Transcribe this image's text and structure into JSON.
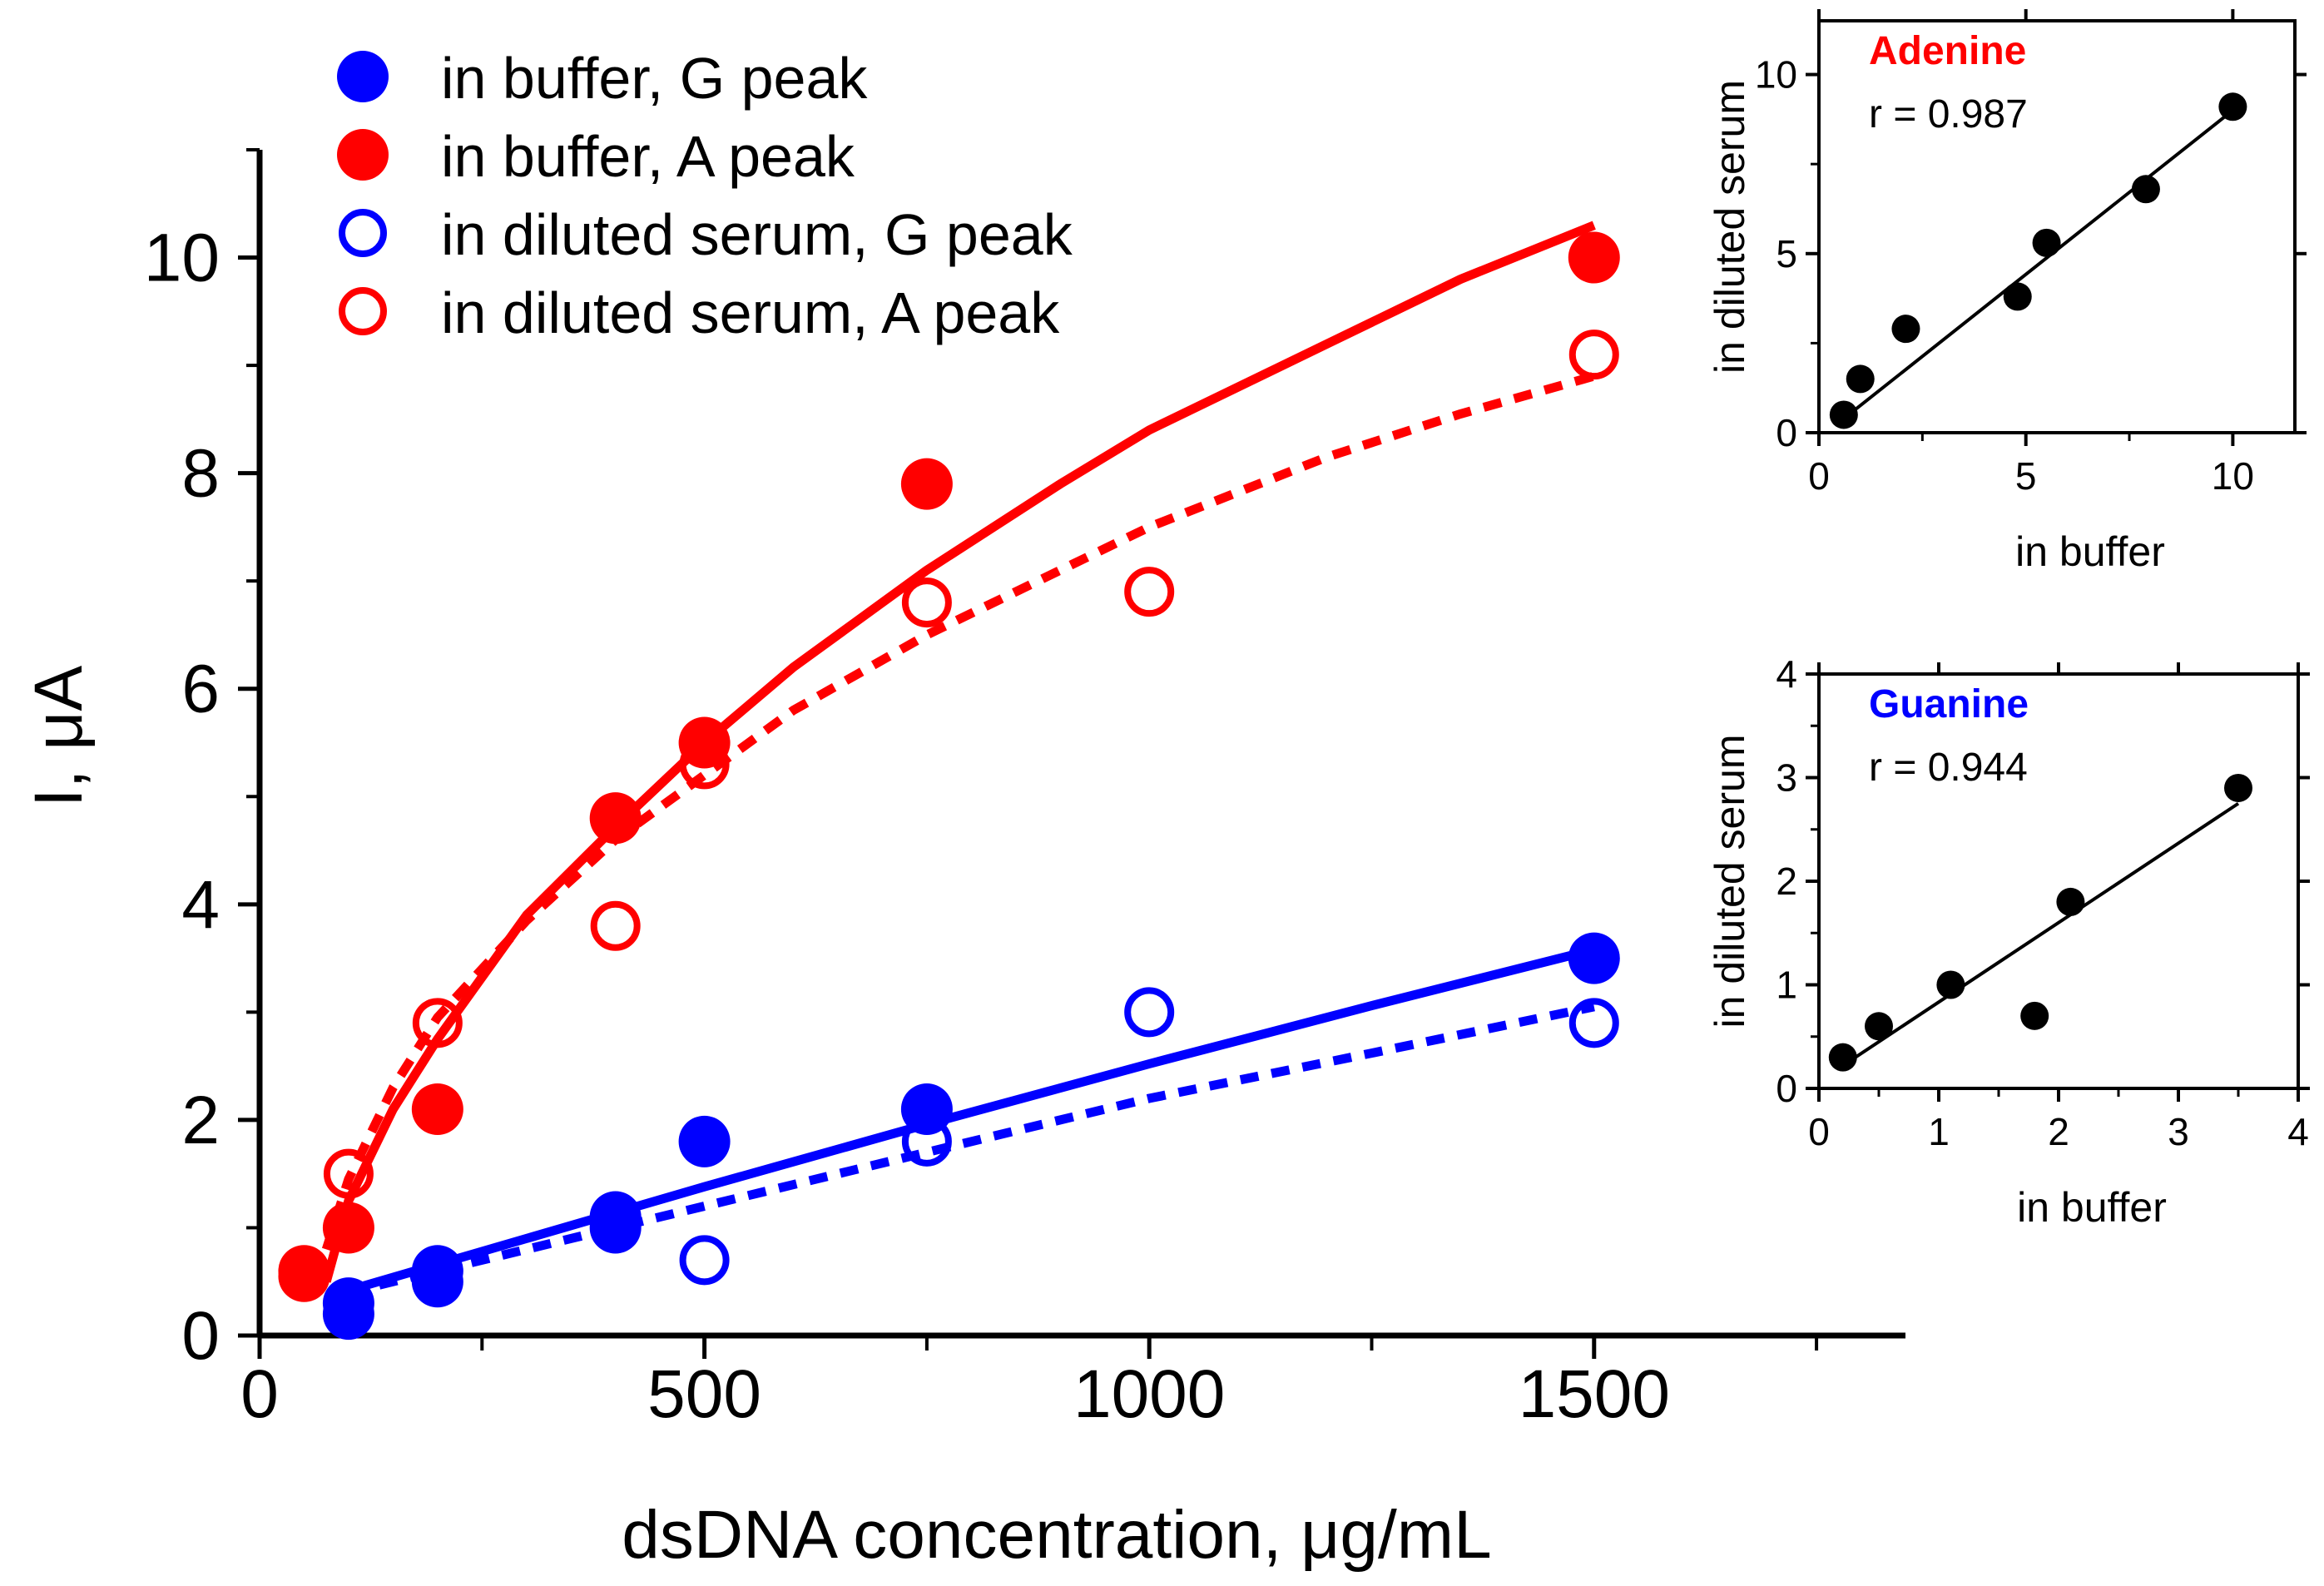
{
  "chart_data": [
    {
      "id": "main",
      "type": "scatter",
      "xlabel": "dsDNA concentration, μg/mL",
      "ylabel": "I, μA",
      "xlim": [
        0,
        1850
      ],
      "ylim": [
        0,
        11
      ],
      "xticks": [
        0,
        500,
        1000,
        1500
      ],
      "yticks": [
        0,
        2,
        4,
        6,
        8,
        10
      ],
      "legend_position": "top-left",
      "series": [
        {
          "name": "in buffer, G peak",
          "color": "#0000ff",
          "marker": "filled-circle",
          "points": [
            [
              100,
              0.3
            ],
            [
              100,
              0.2
            ],
            [
              200,
              0.5
            ],
            [
              200,
              0.6
            ],
            [
              400,
              1.0
            ],
            [
              400,
              1.1
            ],
            [
              500,
              1.8
            ],
            [
              750,
              2.1
            ],
            [
              1500,
              3.5
            ]
          ],
          "fit": {
            "style": "solid",
            "points": [
              [
                100,
                0.42
              ],
              [
                300,
                0.9
              ],
              [
                500,
                1.38
              ],
              [
                750,
                1.96
              ],
              [
                1000,
                2.52
              ],
              [
                1250,
                3.06
              ],
              [
                1500,
                3.58
              ]
            ]
          }
        },
        {
          "name": "in buffer, A peak",
          "color": "#ff0000",
          "marker": "filled-circle",
          "points": [
            [
              50,
              0.55
            ],
            [
              50,
              0.6
            ],
            [
              100,
              1.0
            ],
            [
              200,
              2.1
            ],
            [
              400,
              4.8
            ],
            [
              500,
              5.5
            ],
            [
              750,
              7.9
            ],
            [
              1500,
              10.0
            ]
          ],
          "fit": {
            "style": "solid",
            "points": [
              [
                75,
                0.5
              ],
              [
                100,
                1.25
              ],
              [
                150,
                2.1
              ],
              [
                200,
                2.75
              ],
              [
                300,
                3.9
              ],
              [
                400,
                4.72
              ],
              [
                500,
                5.5
              ],
              [
                600,
                6.2
              ],
              [
                750,
                7.1
              ],
              [
                900,
                7.9
              ],
              [
                1000,
                8.4
              ],
              [
                1200,
                9.2
              ],
              [
                1350,
                9.8
              ],
              [
                1500,
                10.3
              ]
            ]
          }
        },
        {
          "name": "in diluted serum, G peak",
          "color": "#0000ff",
          "marker": "open-circle",
          "points": [
            [
              200,
              0.5
            ],
            [
              500,
              0.7
            ],
            [
              750,
              1.8
            ],
            [
              1000,
              3.0
            ],
            [
              1500,
              2.9
            ]
          ],
          "fit": {
            "style": "dotted",
            "points": [
              [
                100,
                0.4
              ],
              [
                300,
                0.8
              ],
              [
                500,
                1.2
              ],
              [
                750,
                1.7
              ],
              [
                1000,
                2.2
              ],
              [
                1250,
                2.62
              ],
              [
                1500,
                3.05
              ]
            ]
          }
        },
        {
          "name": "in diluted serum, A peak",
          "color": "#ff0000",
          "marker": "open-circle",
          "points": [
            [
              100,
              1.5
            ],
            [
              200,
              2.9
            ],
            [
              400,
              3.8
            ],
            [
              500,
              5.3
            ],
            [
              750,
              6.8
            ],
            [
              1000,
              6.9
            ],
            [
              1500,
              9.1
            ]
          ],
          "fit": {
            "style": "dotted",
            "points": [
              [
                75,
                0.8
              ],
              [
                100,
                1.45
              ],
              [
                150,
                2.3
              ],
              [
                200,
                2.95
              ],
              [
                300,
                3.85
              ],
              [
                400,
                4.6
              ],
              [
                500,
                5.2
              ],
              [
                600,
                5.8
              ],
              [
                750,
                6.5
              ],
              [
                900,
                7.1
              ],
              [
                1000,
                7.5
              ],
              [
                1200,
                8.15
              ],
              [
                1350,
                8.55
              ],
              [
                1500,
                8.9
              ]
            ]
          }
        }
      ]
    },
    {
      "id": "inset-adenine",
      "type": "scatter",
      "title": "Adenine",
      "title_color": "#ff0000",
      "annotation": "r = 0.987",
      "xlabel": "in buffer",
      "ylabel": "in diluted serum",
      "xlim": [
        0,
        11.5
      ],
      "ylim": [
        0,
        11.5
      ],
      "xticks": [
        0,
        5,
        10
      ],
      "yticks": [
        0,
        5,
        10
      ],
      "series": [
        {
          "name": "Adenine",
          "color": "#000000",
          "marker": "filled-circle",
          "points": [
            [
              0.6,
              0.5
            ],
            [
              1.0,
              1.5
            ],
            [
              2.1,
              2.9
            ],
            [
              4.8,
              3.8
            ],
            [
              5.5,
              5.3
            ],
            [
              7.9,
              6.8
            ],
            [
              10.0,
              9.1
            ]
          ],
          "fit": {
            "style": "solid",
            "points": [
              [
                0.5,
                0.3
              ],
              [
                10.0,
                9.0
              ]
            ]
          }
        }
      ]
    },
    {
      "id": "inset-guanine",
      "type": "scatter",
      "title": "Guanine",
      "title_color": "#0000ff",
      "annotation": "r = 0.944",
      "xlabel": "in buffer",
      "ylabel": "in diluted serum",
      "xlim": [
        0,
        4
      ],
      "ylim": [
        0,
        4
      ],
      "xticks": [
        0,
        1,
        2,
        3,
        4
      ],
      "yticks": [
        0,
        1,
        2,
        3,
        4
      ],
      "series": [
        {
          "name": "Guanine",
          "color": "#000000",
          "marker": "filled-circle",
          "points": [
            [
              0.2,
              0.3
            ],
            [
              0.5,
              0.6
            ],
            [
              1.1,
              1.0
            ],
            [
              1.8,
              0.7
            ],
            [
              2.1,
              1.8
            ],
            [
              3.5,
              2.9
            ]
          ],
          "fit": {
            "style": "solid",
            "points": [
              [
                0.2,
                0.22
              ],
              [
                3.5,
                2.75
              ]
            ]
          }
        }
      ]
    }
  ]
}
